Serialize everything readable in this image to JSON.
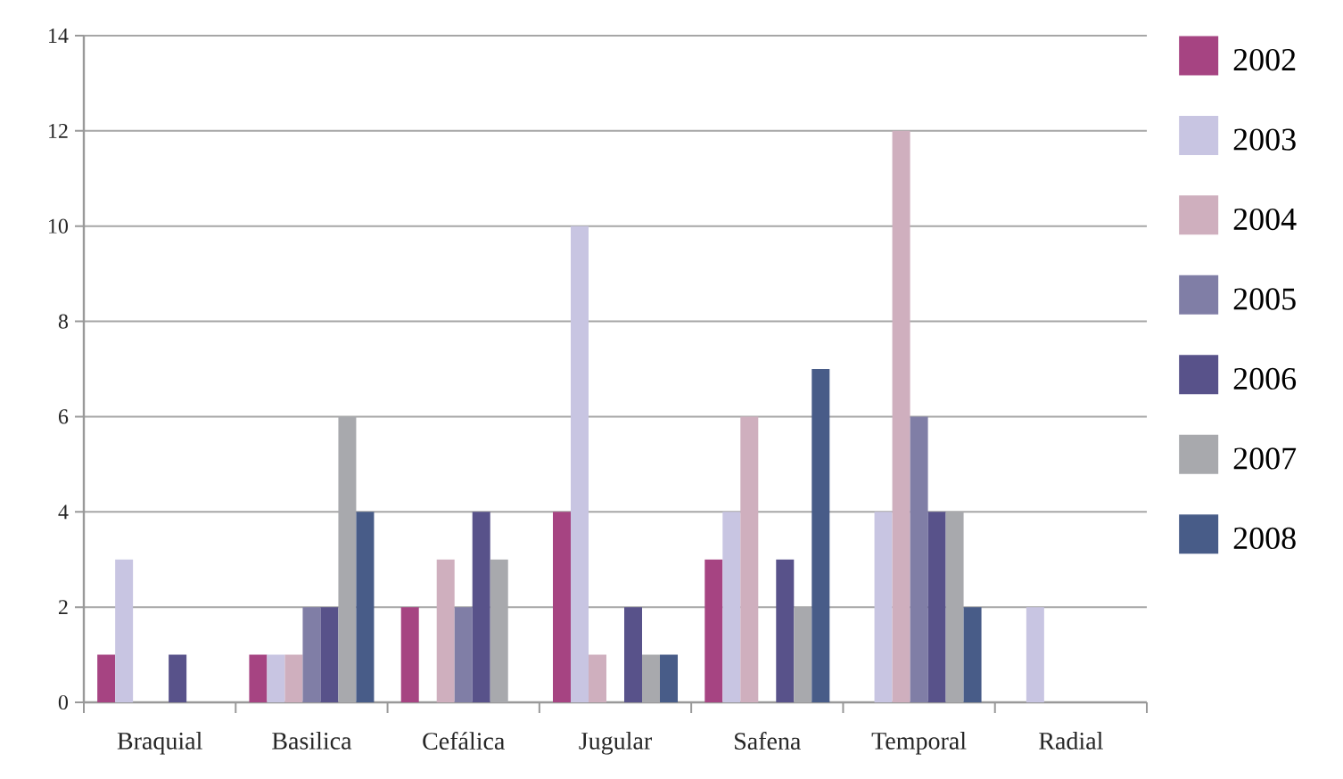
{
  "chart_data": {
    "type": "bar",
    "categories": [
      "Braquial",
      "Basilica",
      "Cefálica",
      "Jugular",
      "Safena",
      "Temporal",
      "Radial"
    ],
    "series": [
      {
        "name": "2002",
        "color": "#a64482",
        "values": [
          1,
          1,
          2,
          4,
          3,
          0,
          0
        ]
      },
      {
        "name": "2003",
        "color": "#c8c5e2",
        "values": [
          3,
          1,
          0,
          10,
          4,
          4,
          2
        ]
      },
      {
        "name": "2004",
        "color": "#cfafbe",
        "values": [
          0,
          1,
          3,
          1,
          6,
          12,
          0
        ]
      },
      {
        "name": "2005",
        "color": "#807ea6",
        "values": [
          0,
          2,
          2,
          0,
          0,
          6,
          0
        ]
      },
      {
        "name": "2006",
        "color": "#58528a",
        "values": [
          1,
          2,
          4,
          2,
          3,
          4,
          0
        ]
      },
      {
        "name": "2007",
        "color": "#a8a9ad",
        "values": [
          0,
          6,
          3,
          1,
          2,
          4,
          0
        ]
      },
      {
        "name": "2008",
        "color": "#485c88",
        "values": [
          0,
          4,
          0,
          1,
          7,
          2,
          0
        ]
      }
    ],
    "ylim": [
      0,
      14
    ],
    "yticks": [
      0,
      2,
      4,
      6,
      8,
      10,
      12,
      14
    ],
    "grid": "y",
    "legend": "right"
  }
}
